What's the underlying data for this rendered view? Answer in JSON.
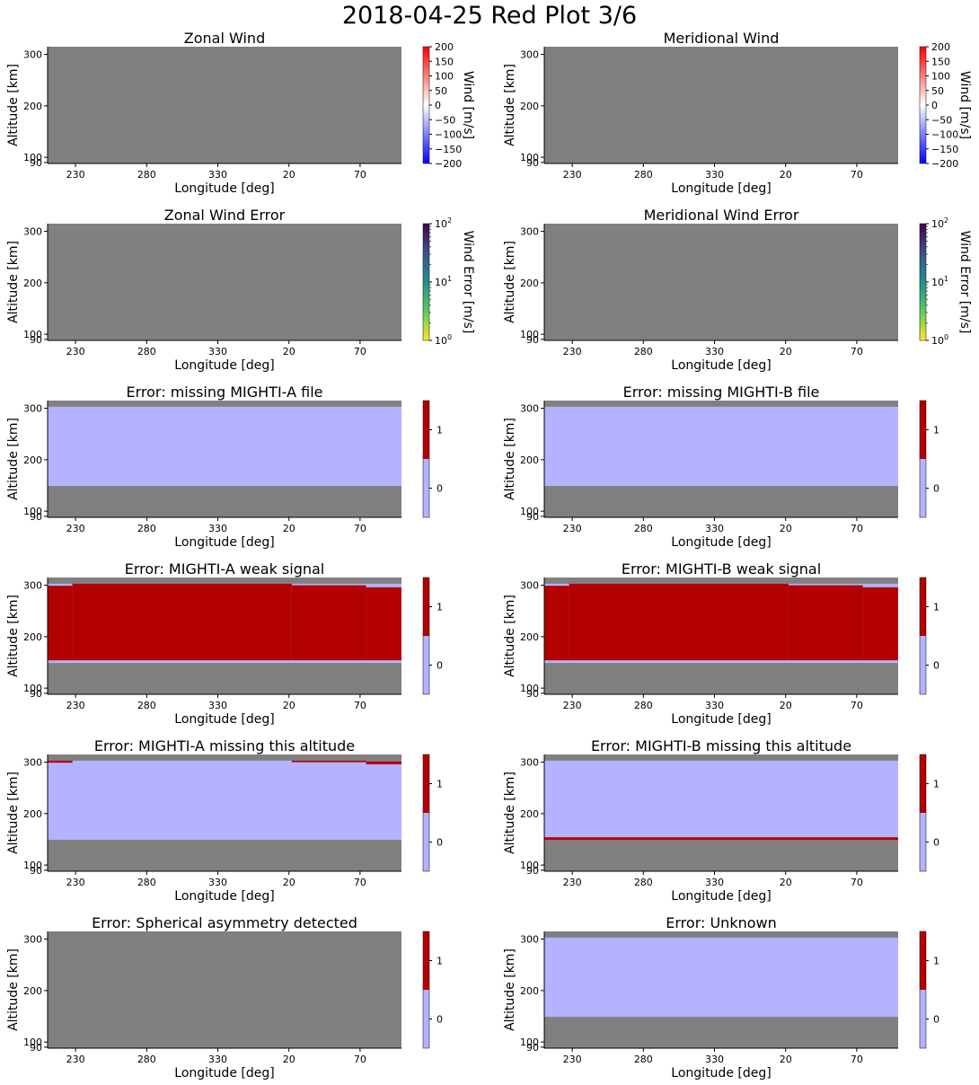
{
  "figure_title": "2018-04-25 Red Plot 3/6",
  "colors": {
    "missing_gray": "#808080",
    "flag_zero": "#b3b3ff",
    "flag_one": "#b30000"
  },
  "chart_data": [
    {
      "type": "heatmap",
      "kind": "wind",
      "title": "Zonal Wind",
      "xlabel": "Longitude [deg]",
      "ylabel": "Altitude [km]",
      "x_ticks": [
        "230",
        "280",
        "330",
        "20",
        "70"
      ],
      "y_ticks": [
        "90",
        "100",
        "200",
        "300"
      ],
      "colorbar": {
        "label": "Wind [m/s]",
        "scale": "linear",
        "range": [
          -200,
          200
        ],
        "ticks": [
          "200",
          "150",
          "100",
          "50",
          "0",
          "−50",
          "−100",
          "−150",
          "−200"
        ]
      },
      "altitude_range": [
        88,
        315
      ],
      "data": "all missing"
    },
    {
      "type": "heatmap",
      "kind": "wind",
      "title": "Meridional Wind",
      "xlabel": "Longitude [deg]",
      "ylabel": "Altitude [km]",
      "x_ticks": [
        "230",
        "280",
        "330",
        "20",
        "70"
      ],
      "y_ticks": [
        "90",
        "100",
        "200",
        "300"
      ],
      "colorbar": {
        "label": "Wind [m/s]",
        "scale": "linear",
        "range": [
          -200,
          200
        ],
        "ticks": [
          "200",
          "150",
          "100",
          "50",
          "0",
          "−50",
          "−100",
          "−150",
          "−200"
        ]
      },
      "altitude_range": [
        88,
        315
      ],
      "data": "all missing"
    },
    {
      "type": "heatmap",
      "kind": "error",
      "title": "Zonal Wind Error",
      "xlabel": "Longitude [deg]",
      "ylabel": "Altitude [km]",
      "x_ticks": [
        "230",
        "280",
        "330",
        "20",
        "70"
      ],
      "y_ticks": [
        "90",
        "100",
        "200",
        "300"
      ],
      "colorbar": {
        "label": "Wind Error [m/s]",
        "scale": "log",
        "range": [
          1,
          100
        ],
        "ticks": [
          {
            "base": "10",
            "exp": "2"
          },
          {
            "base": "10",
            "exp": "1"
          },
          {
            "base": "10",
            "exp": "0"
          }
        ]
      },
      "altitude_range": [
        88,
        315
      ],
      "data": "all missing"
    },
    {
      "type": "heatmap",
      "kind": "error",
      "title": "Meridional Wind Error",
      "xlabel": "Longitude [deg]",
      "ylabel": "Altitude [km]",
      "x_ticks": [
        "230",
        "280",
        "330",
        "20",
        "70"
      ],
      "y_ticks": [
        "90",
        "100",
        "200",
        "300"
      ],
      "colorbar": {
        "label": "Wind Error [m/s]",
        "scale": "log",
        "range": [
          1,
          100
        ],
        "ticks": [
          {
            "base": "10",
            "exp": "2"
          },
          {
            "base": "10",
            "exp": "1"
          },
          {
            "base": "10",
            "exp": "0"
          }
        ]
      },
      "altitude_range": [
        88,
        315
      ],
      "data": "all missing"
    },
    {
      "type": "heatmap",
      "kind": "flag",
      "title": "Error: missing MIGHTI-A file",
      "xlabel": "Longitude [deg]",
      "ylabel": "Altitude [km]",
      "x_ticks": [
        "230",
        "280",
        "330",
        "20",
        "70"
      ],
      "y_ticks": [
        "90",
        "100",
        "200",
        "300"
      ],
      "colorbar": {
        "ticks": [
          "1",
          "0"
        ]
      },
      "altitude_range": [
        88,
        315
      ],
      "regions": [
        {
          "value": 0,
          "lon_frac": [
            0,
            1
          ],
          "alt": [
            149,
            303
          ]
        }
      ]
    },
    {
      "type": "heatmap",
      "kind": "flag",
      "title": "Error: missing MIGHTI-B file",
      "xlabel": "Longitude [deg]",
      "ylabel": "Altitude [km]",
      "x_ticks": [
        "230",
        "280",
        "330",
        "20",
        "70"
      ],
      "y_ticks": [
        "90",
        "100",
        "200",
        "300"
      ],
      "colorbar": {
        "ticks": [
          "1",
          "0"
        ]
      },
      "altitude_range": [
        88,
        315
      ],
      "regions": [
        {
          "value": 0,
          "lon_frac": [
            0,
            1
          ],
          "alt": [
            149,
            303
          ]
        }
      ]
    },
    {
      "type": "heatmap",
      "kind": "flag",
      "title": "Error: MIGHTI-A weak signal",
      "xlabel": "Longitude [deg]",
      "ylabel": "Altitude [km]",
      "x_ticks": [
        "230",
        "280",
        "330",
        "20",
        "70"
      ],
      "y_ticks": [
        "90",
        "100",
        "200",
        "300"
      ],
      "colorbar": {
        "ticks": [
          "1",
          "0"
        ]
      },
      "altitude_range": [
        88,
        315
      ],
      "regions": [
        {
          "value": 0,
          "lon_frac": [
            0,
            1
          ],
          "alt": [
            149,
            303
          ]
        },
        {
          "value": 1,
          "lon_frac": [
            0,
            0.07
          ],
          "alt": [
            154,
            299
          ]
        },
        {
          "value": 1,
          "lon_frac": [
            0.07,
            0.69
          ],
          "alt": [
            154,
            303
          ]
        },
        {
          "value": 1,
          "lon_frac": [
            0.69,
            0.9
          ],
          "alt": [
            154,
            300
          ]
        },
        {
          "value": 1,
          "lon_frac": [
            0.9,
            1
          ],
          "alt": [
            154,
            296
          ]
        }
      ]
    },
    {
      "type": "heatmap",
      "kind": "flag",
      "title": "Error: MIGHTI-B weak signal",
      "xlabel": "Longitude [deg]",
      "ylabel": "Altitude [km]",
      "x_ticks": [
        "230",
        "280",
        "330",
        "20",
        "70"
      ],
      "y_ticks": [
        "90",
        "100",
        "200",
        "300"
      ],
      "colorbar": {
        "ticks": [
          "1",
          "0"
        ]
      },
      "altitude_range": [
        88,
        315
      ],
      "regions": [
        {
          "value": 0,
          "lon_frac": [
            0,
            1
          ],
          "alt": [
            149,
            303
          ]
        },
        {
          "value": 1,
          "lon_frac": [
            0,
            0.07
          ],
          "alt": [
            154,
            299
          ]
        },
        {
          "value": 1,
          "lon_frac": [
            0.07,
            0.69
          ],
          "alt": [
            154,
            303
          ]
        },
        {
          "value": 1,
          "lon_frac": [
            0.69,
            0.9
          ],
          "alt": [
            154,
            300
          ]
        },
        {
          "value": 1,
          "lon_frac": [
            0.9,
            1
          ],
          "alt": [
            154,
            296
          ]
        }
      ]
    },
    {
      "type": "heatmap",
      "kind": "flag",
      "title": "Error: MIGHTI-A missing this altitude",
      "xlabel": "Longitude [deg]",
      "ylabel": "Altitude [km]",
      "x_ticks": [
        "230",
        "280",
        "330",
        "20",
        "70"
      ],
      "y_ticks": [
        "90",
        "100",
        "200",
        "300"
      ],
      "colorbar": {
        "ticks": [
          "1",
          "0"
        ]
      },
      "altitude_range": [
        88,
        315
      ],
      "regions": [
        {
          "value": 0,
          "lon_frac": [
            0,
            1
          ],
          "alt": [
            149,
            303
          ]
        },
        {
          "value": 1,
          "lon_frac": [
            0,
            0.07
          ],
          "alt": [
            299,
            303
          ]
        },
        {
          "value": 1,
          "lon_frac": [
            0.69,
            0.9
          ],
          "alt": [
            300,
            303
          ]
        },
        {
          "value": 1,
          "lon_frac": [
            0.9,
            1
          ],
          "alt": [
            296,
            302
          ]
        }
      ]
    },
    {
      "type": "heatmap",
      "kind": "flag",
      "title": "Error: MIGHTI-B missing this altitude",
      "xlabel": "Longitude [deg]",
      "ylabel": "Altitude [km]",
      "x_ticks": [
        "230",
        "280",
        "330",
        "20",
        "70"
      ],
      "y_ticks": [
        "90",
        "100",
        "200",
        "300"
      ],
      "colorbar": {
        "ticks": [
          "1",
          "0"
        ]
      },
      "altitude_range": [
        88,
        315
      ],
      "regions": [
        {
          "value": 0,
          "lon_frac": [
            0,
            1
          ],
          "alt": [
            149,
            303
          ]
        },
        {
          "value": 1,
          "lon_frac": [
            0,
            1
          ],
          "alt": [
            149,
            154
          ]
        }
      ]
    },
    {
      "type": "heatmap",
      "kind": "flag",
      "title": "Error: Spherical asymmetry detected",
      "xlabel": "Longitude [deg]",
      "ylabel": "Altitude [km]",
      "x_ticks": [
        "230",
        "280",
        "330",
        "20",
        "70"
      ],
      "y_ticks": [
        "90",
        "100",
        "200",
        "300"
      ],
      "colorbar": {
        "ticks": [
          "1",
          "0"
        ]
      },
      "altitude_range": [
        88,
        315
      ],
      "regions": []
    },
    {
      "type": "heatmap",
      "kind": "flag",
      "title": "Error: Unknown",
      "xlabel": "Longitude [deg]",
      "ylabel": "Altitude [km]",
      "x_ticks": [
        "230",
        "280",
        "330",
        "20",
        "70"
      ],
      "y_ticks": [
        "90",
        "100",
        "200",
        "300"
      ],
      "colorbar": {
        "ticks": [
          "1",
          "0"
        ]
      },
      "altitude_range": [
        88,
        315
      ],
      "regions": [
        {
          "value": 0,
          "lon_frac": [
            0,
            1
          ],
          "alt": [
            149,
            303
          ]
        }
      ]
    }
  ]
}
